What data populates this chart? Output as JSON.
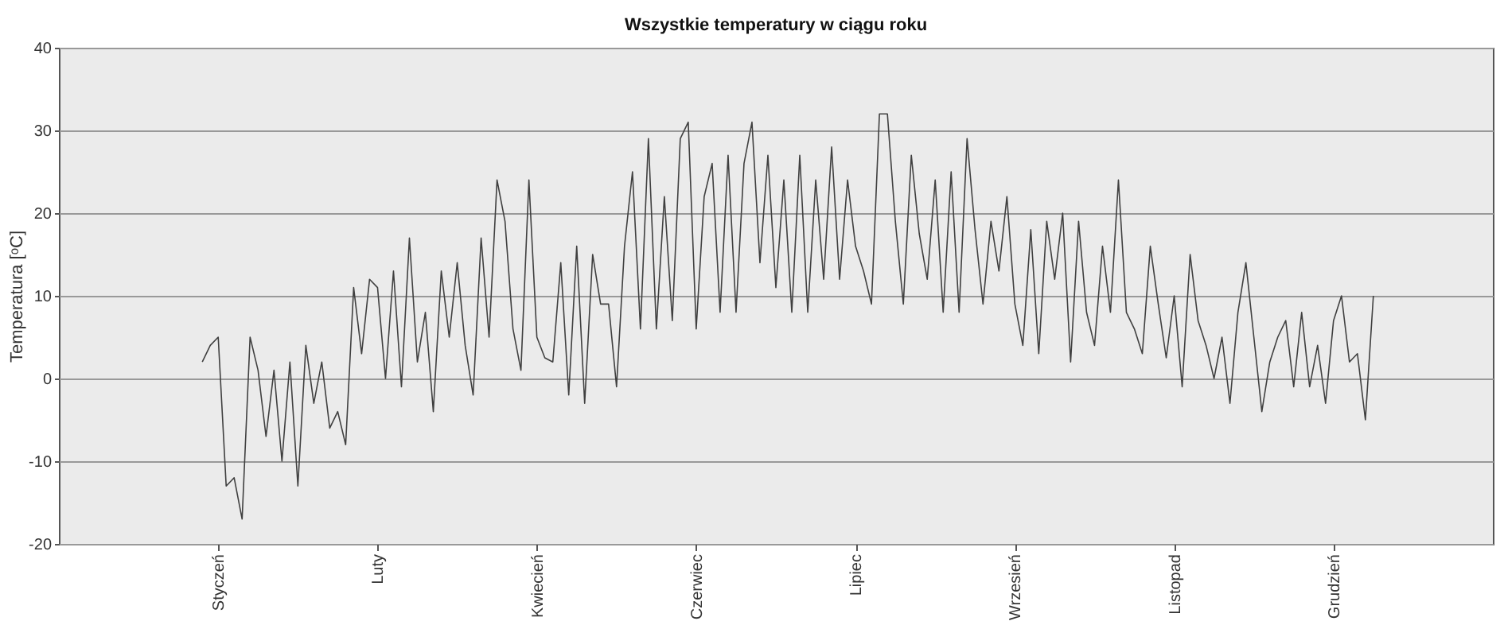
{
  "chart_data": {
    "type": "line",
    "title": "Wszystkie temperatury w ciągu roku",
    "ylabel": "Temperatura [ᵒC]",
    "categories": [
      null,
      null,
      null,
      null,
      null,
      null,
      null,
      null,
      null,
      null,
      null,
      null,
      null,
      null,
      null,
      null,
      null,
      null,
      null,
      null,
      "Styczeń",
      null,
      null,
      null,
      null,
      null,
      null,
      null,
      null,
      null,
      null,
      null,
      null,
      null,
      null,
      null,
      null,
      null,
      null,
      null,
      "Luty",
      null,
      null,
      null,
      null,
      null,
      null,
      null,
      null,
      null,
      null,
      null,
      null,
      null,
      null,
      null,
      null,
      null,
      null,
      null,
      "Kwiecień",
      null,
      null,
      null,
      null,
      null,
      null,
      null,
      null,
      null,
      null,
      null,
      null,
      null,
      null,
      null,
      null,
      null,
      null,
      null,
      "Czerwiec",
      null,
      null,
      null,
      null,
      null,
      null,
      null,
      null,
      null,
      null,
      null,
      null,
      null,
      null,
      null,
      null,
      null,
      null,
      null,
      "Lipiec",
      null,
      null,
      null,
      null,
      null,
      null,
      null,
      null,
      null,
      null,
      null,
      null,
      null,
      null,
      null,
      null,
      null,
      null,
      null,
      "Wrzesień",
      null,
      null,
      null,
      null,
      null,
      null,
      null,
      null,
      null,
      null,
      null,
      null,
      null,
      null,
      null,
      null,
      null,
      null,
      null,
      "Listopad",
      null,
      null,
      null,
      null,
      null,
      null,
      null,
      null,
      null,
      null,
      null,
      null,
      null,
      null,
      null,
      null,
      null,
      null,
      null,
      "Grudzień",
      null,
      null,
      null,
      null,
      null,
      null,
      null,
      null,
      null,
      null,
      null,
      null,
      null,
      null,
      null,
      null,
      null,
      null,
      null,
      null
    ],
    "series": [
      {
        "color": "#404040",
        "values": [
          null,
          null,
          null,
          null,
          null,
          null,
          null,
          null,
          null,
          null,
          null,
          null,
          null,
          null,
          null,
          null,
          null,
          null,
          2,
          4,
          5,
          -13,
          -12,
          -17,
          5,
          1,
          -7,
          1,
          -10,
          2,
          -13,
          4,
          -3,
          2,
          -6,
          -4,
          -8,
          11,
          3,
          12,
          11,
          0,
          13,
          -1,
          17,
          2,
          8,
          -4,
          13,
          5,
          14,
          4,
          -2,
          17,
          5,
          24,
          19,
          6,
          1,
          24,
          5,
          2.5,
          2,
          14,
          -2,
          16,
          -3,
          15,
          9,
          9,
          -1,
          16,
          25,
          6,
          29,
          6,
          22,
          7,
          29,
          31,
          6,
          22,
          26,
          8,
          27,
          8,
          26,
          31,
          14,
          27,
          11,
          24,
          8,
          27,
          8,
          24,
          12,
          28,
          12,
          24,
          16,
          13,
          9,
          32,
          32,
          19,
          9,
          27,
          17.5,
          12,
          24,
          8,
          25,
          8,
          29,
          18,
          9,
          19,
          13,
          22,
          9,
          4,
          18,
          3,
          19,
          12,
          20,
          2,
          19,
          8,
          4,
          16,
          8,
          24,
          8,
          6,
          3,
          16,
          9,
          2.5,
          10,
          -1,
          15,
          7,
          4,
          0,
          5,
          -3,
          8,
          14,
          5,
          -4,
          2,
          5,
          7,
          -1,
          8,
          -1,
          4,
          -3,
          7,
          10,
          2,
          3,
          -5,
          10,
          null,
          null,
          null,
          null,
          null,
          null,
          null,
          null,
          null,
          null,
          null,
          null,
          null,
          null,
          null
        ]
      }
    ],
    "ylim": [
      -20,
      40
    ],
    "yticks": [
      -20,
      -10,
      0,
      10,
      20,
      30,
      40
    ],
    "grid": "y"
  }
}
